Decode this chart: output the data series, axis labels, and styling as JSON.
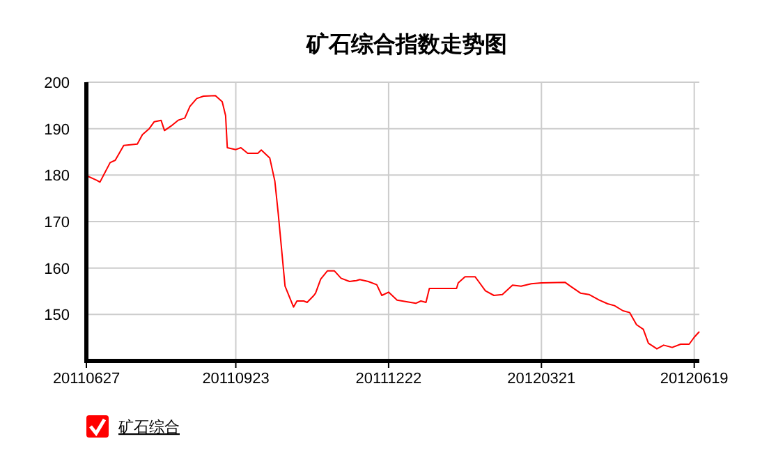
{
  "chart_data": {
    "type": "line",
    "title": "矿石综合指数走势图",
    "x": [
      "2011-06-27",
      "2011-07-03",
      "2011-07-05",
      "2011-07-11",
      "2011-07-14",
      "2011-07-19",
      "2011-07-27",
      "2011-07-30",
      "2011-08-03",
      "2011-08-06",
      "2011-08-10",
      "2011-08-12",
      "2011-08-16",
      "2011-08-20",
      "2011-08-24",
      "2011-08-27",
      "2011-08-31",
      "2011-09-04",
      "2011-09-11",
      "2011-09-15",
      "2011-09-17",
      "2011-09-18",
      "2011-09-23",
      "2011-09-26",
      "2011-09-30",
      "2011-10-06",
      "2011-10-08",
      "2011-10-13",
      "2011-10-16",
      "2011-10-18",
      "2011-10-22",
      "2011-10-27",
      "2011-10-29",
      "2011-11-02",
      "2011-11-04",
      "2011-11-08",
      "2011-11-09",
      "2011-11-12",
      "2011-11-16",
      "2011-11-20",
      "2011-11-24",
      "2011-11-29",
      "2011-12-03",
      "2011-12-05",
      "2011-12-10",
      "2011-12-15",
      "2011-12-18",
      "2011-12-22",
      "2011-12-27",
      "2012-01-07",
      "2012-01-10",
      "2012-01-13",
      "2012-01-15",
      "2012-01-31",
      "2012-02-01",
      "2012-02-05",
      "2012-02-11",
      "2012-02-13",
      "2012-02-17",
      "2012-02-22",
      "2012-02-27",
      "2012-03-04",
      "2012-03-09",
      "2012-03-15",
      "2012-03-21",
      "2012-04-04",
      "2012-04-07",
      "2012-04-13",
      "2012-04-18",
      "2012-04-24",
      "2012-04-29",
      "2012-05-03",
      "2012-05-08",
      "2012-05-12",
      "2012-05-16",
      "2012-05-20",
      "2012-05-23",
      "2012-05-28",
      "2012-06-01",
      "2012-06-06",
      "2012-06-11",
      "2012-06-16",
      "2012-06-19",
      "2012-06-22"
    ],
    "series": [
      {
        "name": "矿石综合",
        "color": "#ff0000",
        "values": [
          179.9,
          178.9,
          178.5,
          182.7,
          183.2,
          186.4,
          186.7,
          188.7,
          190.0,
          191.5,
          191.8,
          189.6,
          190.6,
          191.8,
          192.3,
          194.8,
          196.5,
          197.0,
          197.1,
          195.8,
          192.8,
          185.9,
          185.5,
          185.9,
          184.7,
          184.7,
          185.4,
          183.7,
          178.7,
          171.7,
          156.1,
          151.6,
          152.9,
          152.9,
          152.6,
          154.1,
          154.6,
          157.6,
          159.4,
          159.4,
          157.8,
          157.1,
          157.3,
          157.5,
          157.1,
          156.4,
          154.1,
          154.8,
          153.1,
          152.4,
          152.9,
          152.6,
          155.6,
          155.6,
          156.8,
          158.1,
          158.1,
          157.1,
          155.1,
          154.1,
          154.3,
          156.3,
          156.1,
          156.6,
          156.8,
          156.9,
          156.1,
          154.6,
          154.3,
          153.1,
          152.3,
          151.9,
          150.8,
          150.4,
          147.8,
          146.8,
          143.8,
          142.6,
          143.4,
          142.9,
          143.6,
          143.6,
          145.1,
          146.3
        ]
      }
    ],
    "xlim": [
      "2011-06-27",
      "2012-06-22"
    ],
    "xticks": [
      {
        "value": "2011-06-27",
        "label": "20110627"
      },
      {
        "value": "2011-09-23",
        "label": "20110923"
      },
      {
        "value": "2011-12-22",
        "label": "20111222"
      },
      {
        "value": "2012-03-21",
        "label": "20120321"
      },
      {
        "value": "2012-06-19",
        "label": "20120619"
      }
    ],
    "ylim": [
      140,
      200
    ],
    "yticks": [
      150,
      160,
      170,
      180,
      190,
      200
    ],
    "grid": true,
    "legend": "bottom left"
  }
}
